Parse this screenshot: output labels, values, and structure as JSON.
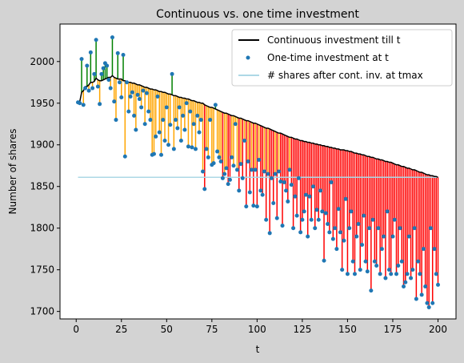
{
  "chart_data": {
    "type": "stem_scatter",
    "title": "Continuous vs. one time investment",
    "x_label": "t",
    "y_label": "Number of shares",
    "x": [
      1,
      2,
      3,
      4,
      5,
      6,
      7,
      8,
      9,
      10,
      11,
      12,
      13,
      14,
      15,
      16,
      17,
      18,
      19,
      20,
      21,
      22,
      23,
      24,
      25,
      26,
      27,
      28,
      29,
      30,
      31,
      32,
      33,
      34,
      35,
      36,
      37,
      38,
      39,
      40,
      41,
      42,
      43,
      44,
      45,
      46,
      47,
      48,
      49,
      50,
      51,
      52,
      53,
      54,
      55,
      56,
      57,
      58,
      59,
      60,
      61,
      62,
      63,
      64,
      65,
      66,
      67,
      68,
      69,
      70,
      71,
      72,
      73,
      74,
      75,
      76,
      77,
      78,
      79,
      80,
      81,
      82,
      83,
      84,
      85,
      86,
      87,
      88,
      89,
      90,
      91,
      92,
      93,
      94,
      95,
      96,
      97,
      98,
      99,
      100,
      101,
      102,
      103,
      104,
      105,
      106,
      107,
      108,
      109,
      110,
      111,
      112,
      113,
      114,
      115,
      116,
      117,
      118,
      119,
      120,
      121,
      122,
      123,
      124,
      125,
      126,
      127,
      128,
      129,
      130,
      131,
      132,
      133,
      134,
      135,
      136,
      137,
      138,
      139,
      140,
      141,
      142,
      143,
      144,
      145,
      146,
      147,
      148,
      149,
      150,
      151,
      152,
      153,
      154,
      155,
      156,
      157,
      158,
      159,
      160,
      161,
      162,
      163,
      164,
      165,
      166,
      167,
      168,
      169,
      170,
      171,
      172,
      173,
      174,
      175,
      176,
      177,
      178,
      179,
      180,
      181,
      182,
      183,
      184,
      185,
      186,
      187,
      188,
      189,
      190,
      191,
      192,
      193,
      194,
      195,
      196,
      197,
      198,
      199,
      200
    ],
    "series": [
      {
        "name": "Continuous investment till t",
        "color": "#000000",
        "kind": "line",
        "values": [
          1951,
          1952,
          1963,
          1965,
          1970,
          1970,
          1972,
          1975,
          1975,
          1976,
          1980,
          1978,
          1977,
          1977,
          1978,
          1979,
          1980,
          1981,
          1981,
          1983,
          1981,
          1980,
          1979,
          1979,
          1979,
          1977,
          1977,
          1975,
          1975,
          1975,
          1974,
          1974,
          1973,
          1972,
          1972,
          1971,
          1970,
          1969,
          1969,
          1968,
          1967,
          1967,
          1966,
          1966,
          1965,
          1964,
          1964,
          1963,
          1963,
          1962,
          1961,
          1961,
          1960,
          1959,
          1959,
          1958,
          1957,
          1957,
          1956,
          1956,
          1955,
          1955,
          1954,
          1953,
          1953,
          1952,
          1951,
          1951,
          1950,
          1950,
          1948,
          1947,
          1946,
          1945,
          1945,
          1944,
          1943,
          1942,
          1941,
          1940,
          1939,
          1938,
          1938,
          1937,
          1936,
          1935,
          1935,
          1934,
          1933,
          1932,
          1932,
          1931,
          1930,
          1929,
          1929,
          1928,
          1927,
          1926,
          1926,
          1925,
          1924,
          1923,
          1922,
          1921,
          1920,
          1920,
          1919,
          1918,
          1917,
          1916,
          1915,
          1914,
          1914,
          1913,
          1912,
          1911,
          1910,
          1909,
          1909,
          1908,
          1907,
          1907,
          1906,
          1905,
          1905,
          1904,
          1904,
          1903,
          1903,
          1902,
          1902,
          1901,
          1901,
          1900,
          1900,
          1899,
          1899,
          1898,
          1898,
          1897,
          1897,
          1896,
          1896,
          1895,
          1895,
          1894,
          1894,
          1894,
          1893,
          1893,
          1892,
          1892,
          1891,
          1890,
          1890,
          1889,
          1889,
          1888,
          1888,
          1887,
          1886,
          1886,
          1885,
          1885,
          1884,
          1883,
          1883,
          1882,
          1882,
          1881,
          1880,
          1880,
          1879,
          1879,
          1878,
          1877,
          1876,
          1876,
          1875,
          1874,
          1874,
          1873,
          1872,
          1872,
          1871,
          1870,
          1870,
          1869,
          1868,
          1867,
          1867,
          1866,
          1865,
          1864,
          1864,
          1863,
          1863,
          1862,
          1862,
          1861
        ]
      },
      {
        "name": "One-time investment at t",
        "color": "#1f77b4",
        "kind": "scatter",
        "values": [
          1951,
          1950,
          2003,
          1948,
          1968,
          1995,
          1965,
          2011,
          1968,
          1985,
          2026,
          1970,
          1949,
          1985,
          1992,
          1998,
          1995,
          1978,
          1968,
          2029,
          1952,
          1930,
          2010,
          1975,
          1957,
          2008,
          1886,
          1975,
          1940,
          1958,
          1963,
          1935,
          1918,
          1960,
          1955,
          1945,
          1965,
          1925,
          1962,
          1940,
          1930,
          1888,
          1889,
          1910,
          1958,
          1915,
          1888,
          1930,
          1905,
          1945,
          1900,
          1924,
          1985,
          1895,
          1930,
          1920,
          1945,
          1905,
          1935,
          1918,
          1950,
          1898,
          1940,
          1897,
          1925,
          1895,
          1935,
          1915,
          1930,
          1868,
          1847,
          1895,
          1885,
          1930,
          1876,
          1878,
          1948,
          1892,
          1885,
          1880,
          1860,
          1865,
          1872,
          1853,
          1858,
          1885,
          1875,
          1925,
          1870,
          1845,
          1877,
          1860,
          1905,
          1826,
          1880,
          1843,
          1870,
          1827,
          1870,
          1826,
          1882,
          1845,
          1840,
          1868,
          1810,
          1865,
          1794,
          1860,
          1830,
          1865,
          1812,
          1868,
          1856,
          1803,
          1855,
          1845,
          1832,
          1870,
          1852,
          1800,
          1838,
          1815,
          1860,
          1795,
          1810,
          1820,
          1840,
          1790,
          1838,
          1810,
          1850,
          1800,
          1822,
          1810,
          1845,
          1820,
          1761,
          1818,
          1805,
          1795,
          1855,
          1787,
          1800,
          1775,
          1823,
          1795,
          1750,
          1785,
          1835,
          1745,
          1800,
          1820,
          1760,
          1745,
          1790,
          1805,
          1750,
          1780,
          1815,
          1760,
          1748,
          1800,
          1725,
          1810,
          1760,
          1755,
          1800,
          1745,
          1775,
          1790,
          1740,
          1820,
          1750,
          1745,
          1790,
          1810,
          1745,
          1755,
          1800,
          1760,
          1730,
          1735,
          1745,
          1790,
          1740,
          1750,
          1800,
          1715,
          1760,
          1745,
          1720,
          1775,
          1730,
          1710,
          1705,
          1800,
          1710,
          1775,
          1745,
          1732
        ]
      },
      {
        "name": "# shares after cont. inv. at tmax",
        "color": "#add8e6",
        "kind": "hline",
        "value": 1861
      }
    ],
    "stem_colors": {
      "above": "green",
      "between": "orange",
      "below": "red"
    },
    "xlim": [
      -8.95,
      209.95
    ],
    "ylim": [
      1691,
      2045
    ],
    "xticks": [
      0,
      25,
      50,
      75,
      100,
      125,
      150,
      175,
      200
    ],
    "yticks": [
      1700,
      1750,
      1800,
      1850,
      1900,
      1950,
      2000
    ],
    "legend": "upper right",
    "background": "#d3d3d3"
  }
}
